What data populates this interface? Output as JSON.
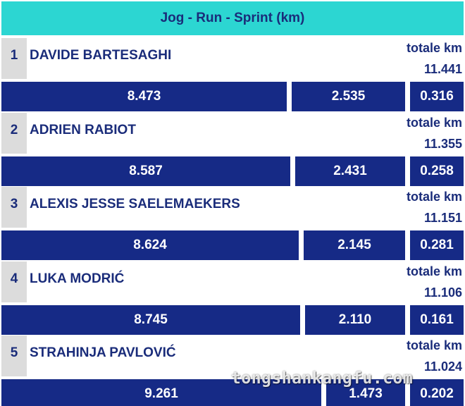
{
  "chart_data": {
    "type": "bar",
    "title": "Jog - Run - Sprint (km)",
    "total_label": "totale km",
    "series": [
      {
        "name": "Jog"
      },
      {
        "name": "Run"
      },
      {
        "name": "Sprint"
      }
    ],
    "rows": [
      {
        "rank": "1",
        "player": "DAVIDE BARTESAGHI",
        "total": "11.441",
        "values": [
          "8.473",
          "2.535",
          "0.316"
        ]
      },
      {
        "rank": "2",
        "player": "ADRIEN RABIOT",
        "total": "11.355",
        "values": [
          "8.587",
          "2.431",
          "0.258"
        ]
      },
      {
        "rank": "3",
        "player": "ALEXIS JESSE SAELEMAEKERS",
        "total": "11.151",
        "values": [
          "8.624",
          "2.145",
          "0.281"
        ]
      },
      {
        "rank": "4",
        "player": "LUKA MODRIĆ",
        "total": "11.106",
        "values": [
          "8.745",
          "2.110",
          "0.161"
        ]
      },
      {
        "rank": "5",
        "player": "STRAHINJA PAVLOVIĆ",
        "total": "11.024",
        "values": [
          "9.261",
          "1.473",
          "0.202"
        ]
      }
    ],
    "colors": {
      "header": "#2cd6d2",
      "bar": "#162a86",
      "text": "#1a2c7a",
      "rank_bg": "#dcdcdc"
    }
  },
  "watermark": "tongshankangfu.com"
}
